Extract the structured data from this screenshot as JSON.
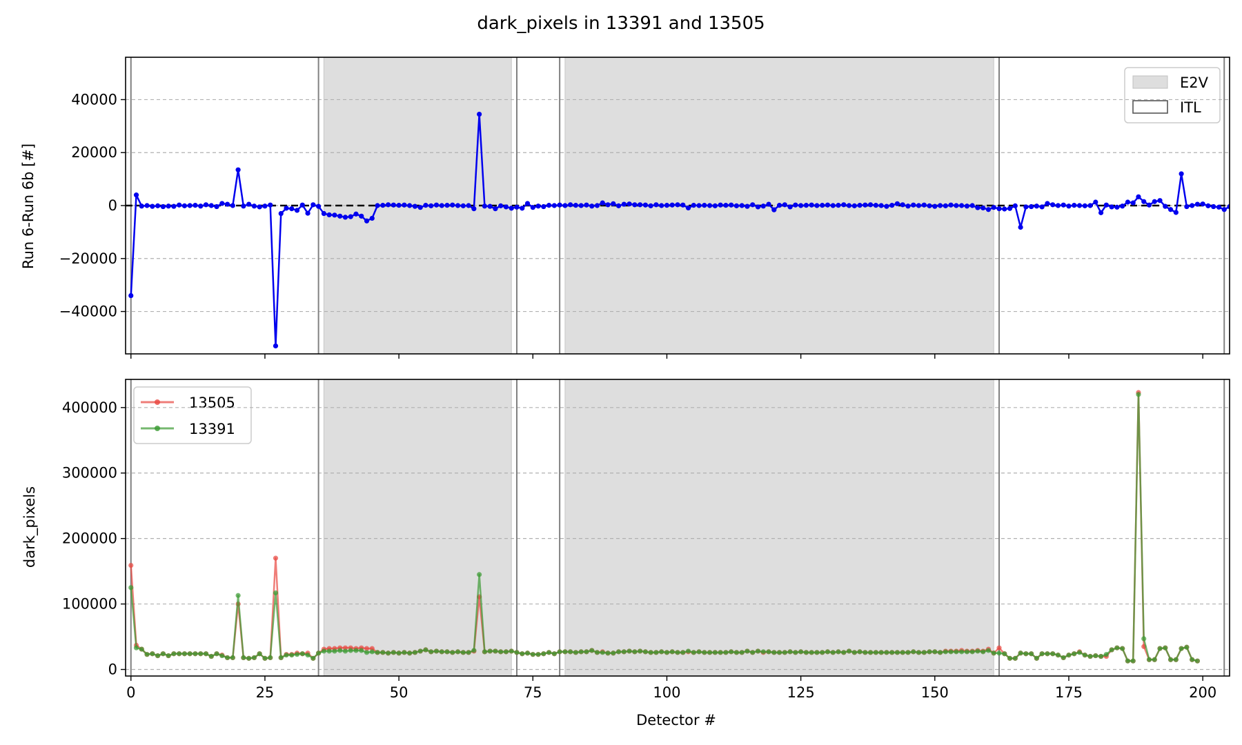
{
  "figure": {
    "title": "dark_pixels in 13391 and 13505"
  },
  "colors": {
    "diff": "#0000ee",
    "run_13505": "#e8463e",
    "run_13391": "#3a9a32",
    "e2v_fill": "#dedede",
    "boundary": "#808080",
    "grid": "#b0b0b0"
  },
  "chart_data": [
    {
      "type": "line",
      "name_key": "difference",
      "xlabel": "",
      "ylabel": "Run 6-Run 6b [#]",
      "xlim": [
        -1,
        205
      ],
      "ylim": [
        -56000,
        56000
      ],
      "x_ticks": [
        0,
        25,
        50,
        75,
        100,
        125,
        150,
        175,
        200
      ],
      "y_ticks": [
        -40000,
        -20000,
        0,
        20000,
        40000
      ],
      "y_tick_labels": [
        "−40000",
        "−20000",
        "0",
        "20000",
        "40000"
      ],
      "grid": "horizontal-dashed",
      "reference_line_y": 0,
      "legend": {
        "placement": "top-right",
        "entries": [
          "E2V",
          "ITL"
        ]
      },
      "regions": [
        {
          "type": "E2V",
          "x0": 36,
          "x1": 71
        },
        {
          "type": "E2V",
          "x0": 81,
          "x1": 161
        }
      ],
      "boundaries": [
        0,
        35,
        72,
        80,
        162,
        204
      ],
      "series": [
        {
          "values": [
            -34000,
            4000,
            -200,
            0,
            -300,
            -100,
            -400,
            -200,
            -300,
            200,
            -100,
            0,
            100,
            -200,
            300,
            0,
            -400,
            800,
            500,
            0,
            13500,
            -200,
            500,
            -200,
            -500,
            -200,
            200,
            -53000,
            -3000,
            -1000,
            -1200,
            -1800,
            200,
            -2900,
            300,
            -300,
            -3000,
            -3500,
            -3600,
            -4000,
            -4400,
            -4200,
            -3200,
            -4000,
            -5800,
            -4800,
            0,
            100,
            300,
            200,
            100,
            200,
            0,
            -300,
            -700,
            100,
            -100,
            200,
            0,
            100,
            200,
            0,
            -100,
            0,
            -1200,
            34500,
            -200,
            -300,
            -1200,
            -100,
            -500,
            -1000,
            -600,
            -1000,
            800,
            -700,
            -200,
            -400,
            100,
            0,
            200,
            0,
            300,
            100,
            0,
            200,
            -200,
            0,
            1000,
            300,
            700,
            -100,
            500,
            600,
            300,
            300,
            200,
            -100,
            300,
            0,
            100,
            200,
            300,
            200,
            -900,
            100,
            0,
            100,
            0,
            -100,
            200,
            100,
            200,
            -100,
            0,
            -300,
            300,
            -500,
            -200,
            500,
            -1600,
            100,
            300,
            -500,
            200,
            0,
            100,
            200,
            0,
            100,
            200,
            0,
            100,
            300,
            0,
            -100,
            100,
            200,
            300,
            100,
            0,
            -300,
            100,
            700,
            300,
            -200,
            200,
            0,
            200,
            -100,
            -300,
            0,
            -100,
            200,
            0,
            0,
            -200,
            0,
            -800,
            -900,
            -1500,
            -700,
            -1200,
            -1300,
            -1100,
            -100,
            -8200,
            -500,
            -400,
            -200,
            -500,
            800,
            300,
            0,
            200,
            -200,
            100,
            0,
            -100,
            0,
            1300,
            -2700,
            200,
            -500,
            -600,
            -200,
            1300,
            1000,
            3300,
            1500,
            200,
            1500,
            1900,
            -300,
            -1500,
            -2600,
            12000,
            -400,
            0,
            500,
            600,
            -100,
            -400,
            -600,
            -1500,
            -400,
            3300
          ]
        }
      ]
    },
    {
      "type": "line",
      "name_key": "dark_pixels",
      "xlabel": "Detector #",
      "ylabel": "dark_pixels",
      "xlim": [
        -1,
        205
      ],
      "ylim": [
        -10000,
        443000
      ],
      "x_ticks": [
        0,
        25,
        50,
        75,
        100,
        125,
        150,
        175,
        200
      ],
      "y_ticks": [
        0,
        100000,
        200000,
        300000,
        400000
      ],
      "y_tick_labels": [
        "0",
        "100000",
        "200000",
        "300000",
        "400000"
      ],
      "grid": "horizontal-dashed",
      "legend": {
        "placement": "top-left",
        "entries": [
          "13505",
          "13391"
        ]
      },
      "regions": [
        {
          "type": "E2V",
          "x0": 36,
          "x1": 71
        },
        {
          "type": "E2V",
          "x0": 81,
          "x1": 161
        }
      ],
      "boundaries": [
        0,
        35,
        72,
        80,
        162,
        204
      ],
      "series": [
        {
          "name": "13505",
          "values": [
            159000,
            37000,
            31000,
            23000,
            24000,
            21000,
            24000,
            21000,
            24000,
            24000,
            24000,
            24000,
            24000,
            24000,
            24000,
            20000,
            24000,
            22000,
            18000,
            18000,
            100000,
            18000,
            17000,
            18000,
            24000,
            17000,
            18000,
            170000,
            18000,
            23000,
            23000,
            25000,
            24000,
            25000,
            17000,
            25000,
            31000,
            32000,
            32000,
            33000,
            33000,
            33000,
            32000,
            33000,
            32000,
            32000,
            26000,
            26000,
            25000,
            26000,
            25000,
            26000,
            25000,
            26000,
            28000,
            30000,
            27000,
            28000,
            27000,
            27000,
            26000,
            27000,
            26000,
            26000,
            28000,
            111000,
            27000,
            28000,
            28000,
            27000,
            27000,
            28000,
            26000,
            24000,
            25000,
            23000,
            23000,
            24000,
            26000,
            24000,
            27000,
            27000,
            27000,
            26000,
            27000,
            27000,
            29000,
            26000,
            27000,
            25000,
            25000,
            27000,
            27000,
            28000,
            27000,
            28000,
            27000,
            26000,
            26000,
            27000,
            26000,
            27000,
            26000,
            26000,
            27000,
            26000,
            27000,
            26000,
            26000,
            26000,
            26000,
            26000,
            27000,
            26000,
            26000,
            28000,
            26000,
            28000,
            26000,
            27000,
            26000,
            26000,
            26000,
            27000,
            26000,
            27000,
            26000,
            26000,
            26000,
            26000,
            27000,
            26000,
            27000,
            26000,
            28000,
            26000,
            27000,
            26000,
            26000,
            26000,
            26000,
            26000,
            26000,
            26000,
            26000,
            26000,
            27000,
            26000,
            26000,
            27000,
            27000,
            26000,
            28000,
            28000,
            28000,
            29000,
            28000,
            28000,
            29000,
            28000,
            31000,
            25000,
            33000,
            24000,
            17000,
            17000,
            25000,
            24000,
            24000,
            17000,
            24000,
            24000,
            24000,
            22000,
            18000,
            22000,
            24000,
            27000,
            22000,
            20000,
            21000,
            20000,
            20000,
            30000,
            33000,
            32000,
            13000,
            13000,
            423000,
            35000,
            15000,
            15000,
            32000,
            33000,
            15000,
            15000,
            32000,
            34000,
            15000,
            13000
          ]
        },
        {
          "name": "13391",
          "values": [
            125000,
            33000,
            31000,
            23000,
            24000,
            21000,
            24000,
            21000,
            24000,
            24000,
            24000,
            24000,
            24000,
            24000,
            24000,
            20000,
            24000,
            21000,
            18000,
            18000,
            113000,
            18000,
            17000,
            18000,
            24000,
            17000,
            18000,
            117000,
            18000,
            22000,
            22000,
            23000,
            24000,
            22000,
            17000,
            25000,
            28000,
            28000,
            28000,
            29000,
            28000,
            29000,
            29000,
            29000,
            26000,
            27000,
            26000,
            26000,
            25000,
            26000,
            25000,
            26000,
            25000,
            26000,
            28000,
            30000,
            27000,
            28000,
            27000,
            27000,
            26000,
            27000,
            26000,
            26000,
            29000,
            145000,
            27000,
            28000,
            28000,
            27000,
            27000,
            28000,
            26000,
            24000,
            25000,
            23000,
            23000,
            24000,
            26000,
            24000,
            27000,
            27000,
            27000,
            26000,
            27000,
            27000,
            29000,
            26000,
            26000,
            25000,
            25000,
            27000,
            27000,
            28000,
            27000,
            28000,
            27000,
            26000,
            26000,
            27000,
            26000,
            27000,
            26000,
            26000,
            28000,
            26000,
            27000,
            26000,
            26000,
            26000,
            26000,
            26000,
            27000,
            26000,
            26000,
            28000,
            26000,
            28000,
            27000,
            27000,
            26000,
            26000,
            26000,
            27000,
            26000,
            27000,
            26000,
            26000,
            26000,
            26000,
            27000,
            26000,
            27000,
            26000,
            28000,
            26000,
            27000,
            26000,
            26000,
            26000,
            26000,
            26000,
            26000,
            26000,
            26000,
            26000,
            27000,
            26000,
            26000,
            27000,
            27000,
            26000,
            27000,
            27000,
            27000,
            27000,
            27000,
            27000,
            28000,
            27000,
            29000,
            25000,
            25000,
            24000,
            17000,
            17000,
            25000,
            24000,
            24000,
            17000,
            24000,
            24000,
            24000,
            22000,
            18000,
            22000,
            24000,
            26000,
            22000,
            20000,
            21000,
            20000,
            23000,
            30000,
            33000,
            32000,
            13000,
            13000,
            420000,
            47000,
            15000,
            15000,
            32000,
            33000,
            15000,
            15000,
            32000,
            34000,
            15000,
            13000
          ]
        }
      ]
    }
  ]
}
